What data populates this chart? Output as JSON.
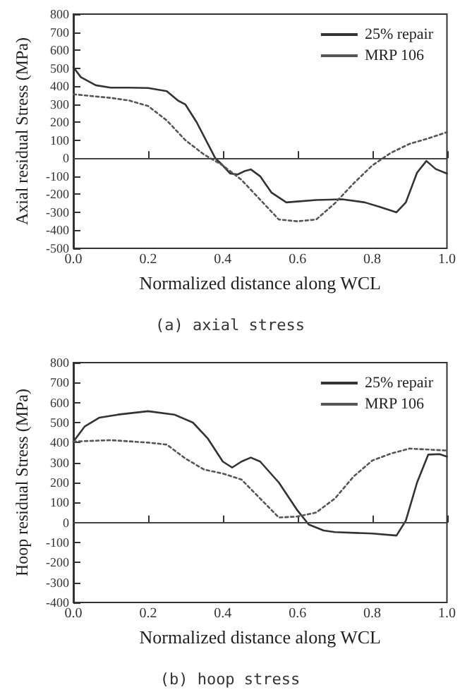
{
  "chart_data": [
    {
      "type": "line",
      "xlabel": "Normalized distance along WCL",
      "ylabel": "Axial residual Stress (MPa)",
      "annotations": [
        "(a) axial stress"
      ],
      "xlim": [
        0,
        1
      ],
      "xticks": [
        {
          "value": 0,
          "label": "0.0"
        },
        {
          "value": 0.2,
          "label": "0.2"
        },
        {
          "value": 0.4,
          "label": "0.4"
        },
        {
          "value": 0.6,
          "label": "0.6"
        },
        {
          "value": 0.8,
          "label": "0.8"
        },
        {
          "value": 1,
          "label": "1.0"
        }
      ],
      "ylim": [
        -500,
        800
      ],
      "yticks": [
        -500,
        -400,
        -300,
        -200,
        -100,
        0,
        100,
        200,
        300,
        400,
        500,
        600,
        700,
        800
      ],
      "legend": "top right",
      "ref_lines": [
        {
          "axis": "y",
          "value": 0,
          "color": "#444444"
        }
      ],
      "series": [
        {
          "name": "25% repair",
          "color": "#333333",
          "line_style": "solid",
          "x": [
            0,
            0.02,
            0.06,
            0.1,
            0.15,
            0.2,
            0.25,
            0.28,
            0.3,
            0.33,
            0.36,
            0.38,
            0.4,
            0.42,
            0.44,
            0.46,
            0.475,
            0.5,
            0.53,
            0.57,
            0.6,
            0.65,
            0.72,
            0.78,
            0.82,
            0.865,
            0.89,
            0.92,
            0.945,
            0.97,
            1.0
          ],
          "values": [
            505,
            450,
            405,
            392,
            392,
            390,
            372,
            320,
            298,
            200,
            80,
            0,
            -40,
            -85,
            -90,
            -70,
            -62,
            -100,
            -190,
            -245,
            -240,
            -232,
            -228,
            -245,
            -270,
            -300,
            -245,
            -80,
            -15,
            -60,
            -85
          ]
        },
        {
          "name": "MRP 106",
          "color": "#555555",
          "line_style": "dotted",
          "x": [
            0,
            0.05,
            0.1,
            0.15,
            0.2,
            0.25,
            0.3,
            0.35,
            0.4,
            0.45,
            0.5,
            0.55,
            0.6,
            0.65,
            0.7,
            0.75,
            0.8,
            0.85,
            0.9,
            0.95,
            1.0
          ],
          "values": [
            355,
            345,
            335,
            320,
            290,
            210,
            100,
            20,
            -40,
            -120,
            -230,
            -340,
            -350,
            -340,
            -250,
            -140,
            -40,
            30,
            80,
            110,
            145
          ]
        }
      ]
    },
    {
      "type": "line",
      "xlabel": "Normalized distance along WCL",
      "ylabel": "Hoop residual Stress (MPa)",
      "annotations": [
        "(b) hoop stress"
      ],
      "xlim": [
        0,
        1
      ],
      "xticks": [
        {
          "value": 0,
          "label": "0.0"
        },
        {
          "value": 0.2,
          "label": "0.2"
        },
        {
          "value": 0.4,
          "label": "0.4"
        },
        {
          "value": 0.6,
          "label": "0.6"
        },
        {
          "value": 0.8,
          "label": "0.8"
        },
        {
          "value": 1,
          "label": "1.0"
        }
      ],
      "ylim": [
        -400,
        800
      ],
      "yticks": [
        -400,
        -300,
        -200,
        -100,
        0,
        100,
        200,
        300,
        400,
        500,
        600,
        700,
        800
      ],
      "legend": "top right",
      "ref_lines": [
        {
          "axis": "y",
          "value": 0,
          "color": "#444444"
        }
      ],
      "series": [
        {
          "name": "25% repair",
          "color": "#333333",
          "line_style": "solid",
          "x": [
            0,
            0.03,
            0.07,
            0.12,
            0.2,
            0.27,
            0.32,
            0.36,
            0.4,
            0.425,
            0.45,
            0.475,
            0.5,
            0.55,
            0.6,
            0.63,
            0.67,
            0.7,
            0.8,
            0.865,
            0.89,
            0.92,
            0.95,
            0.98,
            1.0
          ],
          "values": [
            405,
            480,
            525,
            540,
            557,
            540,
            500,
            420,
            305,
            275,
            305,
            325,
            305,
            200,
            60,
            -10,
            -40,
            -48,
            -55,
            -65,
            10,
            200,
            340,
            342,
            330
          ]
        },
        {
          "name": "MRP 106",
          "color": "#555555",
          "line_style": "dotted",
          "x": [
            0,
            0.1,
            0.2,
            0.25,
            0.3,
            0.35,
            0.4,
            0.45,
            0.5,
            0.55,
            0.6,
            0.65,
            0.7,
            0.75,
            0.8,
            0.85,
            0.9,
            1.0
          ],
          "values": [
            405,
            412,
            400,
            390,
            320,
            265,
            245,
            215,
            120,
            25,
            30,
            50,
            120,
            230,
            310,
            345,
            370,
            360
          ]
        }
      ]
    }
  ]
}
